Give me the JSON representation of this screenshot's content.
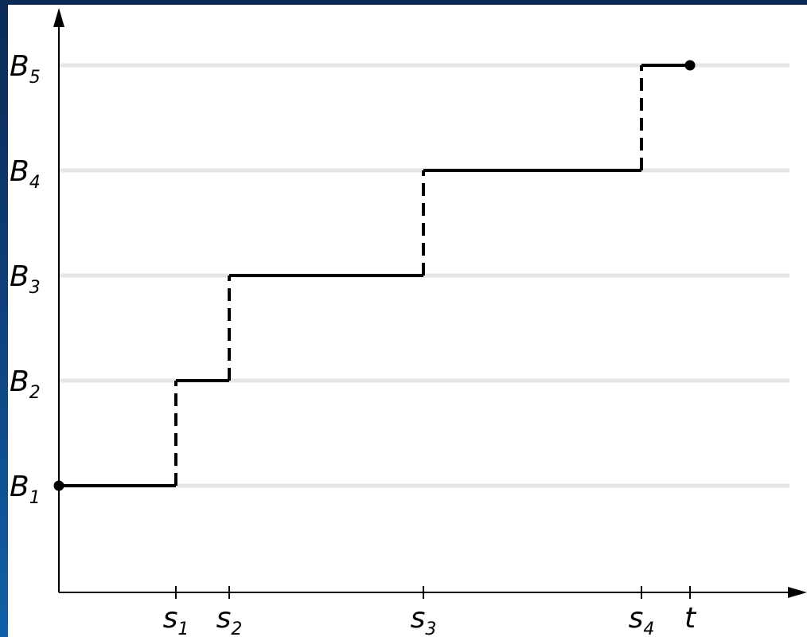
{
  "levels": [
    {
      "base": "B",
      "sub": "1"
    },
    {
      "base": "B",
      "sub": "2"
    },
    {
      "base": "B",
      "sub": "3"
    },
    {
      "base": "B",
      "sub": "4"
    },
    {
      "base": "B",
      "sub": "5"
    }
  ],
  "times": [
    {
      "base": "s",
      "sub": "1"
    },
    {
      "base": "s",
      "sub": "2"
    },
    {
      "base": "s",
      "sub": "3"
    },
    {
      "base": "s",
      "sub": "4"
    },
    {
      "base": "t",
      "sub": ""
    }
  ],
  "path": {
    "start_level": 1,
    "end_time": "t",
    "steps": [
      {
        "at": "s1",
        "from_level": 1,
        "to_level": 2
      },
      {
        "at": "s2",
        "from_level": 2,
        "to_level": 3
      },
      {
        "at": "s3",
        "from_level": 3,
        "to_level": 4
      },
      {
        "at": "s4",
        "from_level": 4,
        "to_level": 5
      }
    ]
  },
  "colors": {
    "line": "#000000",
    "grid": "#e6e6e6",
    "background": "#ffffff",
    "frame": "#0d3f78"
  }
}
